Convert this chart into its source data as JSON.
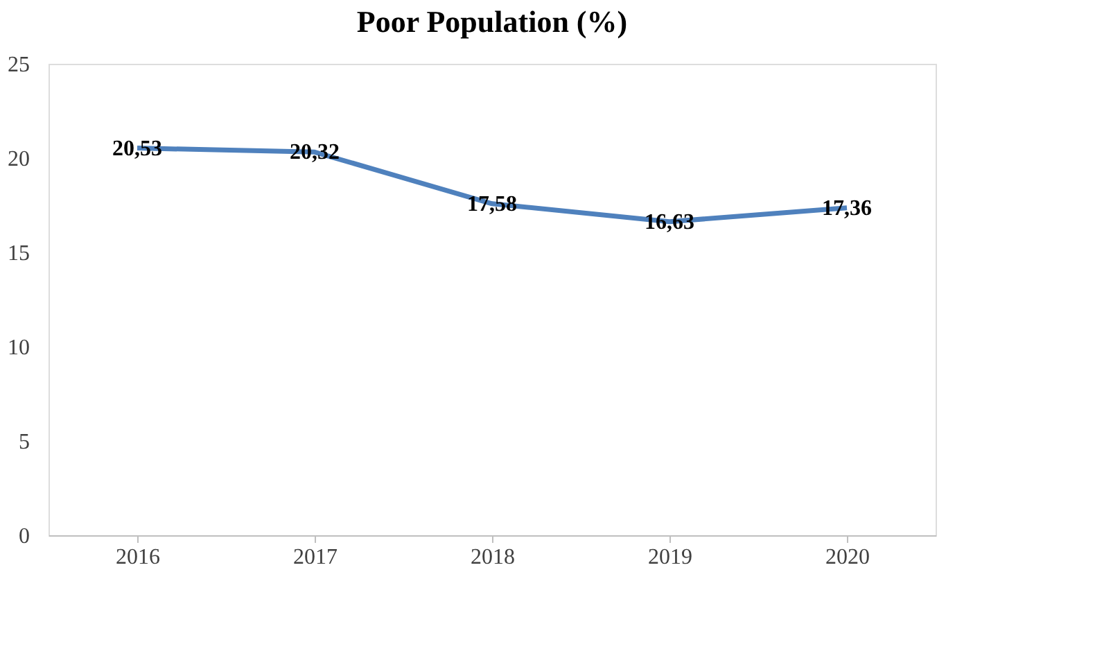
{
  "chart_data": {
    "type": "line",
    "title": "Poor Population  (%)",
    "categories": [
      "2016",
      "2017",
      "2018",
      "2019",
      "2020"
    ],
    "series": [
      {
        "color": "#4f81bd",
        "values": [
          20.53,
          20.32,
          17.58,
          16.63,
          17.36
        ]
      }
    ],
    "value_labels": [
      "20,53",
      "20,32",
      "17,58",
      "16,63",
      "17,36"
    ],
    "ylim": [
      0,
      25
    ],
    "yticks": [
      0,
      5,
      10,
      15,
      20,
      25
    ],
    "grid": false,
    "marker": "none",
    "line_style": "solid"
  }
}
